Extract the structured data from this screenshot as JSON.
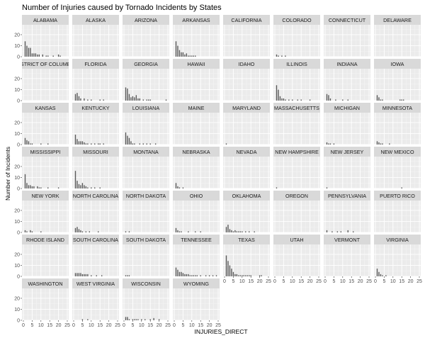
{
  "chart_data": {
    "type": "bar",
    "title": "Number of Injuries caused by Tornado Incidents by States",
    "xlabel": "INJURIES_DIRECT",
    "ylabel": "Number of Incidents",
    "xlim": [
      0,
      25
    ],
    "ylim": [
      0,
      29
    ],
    "x_ticks": [
      0,
      5,
      10,
      15,
      20,
      25
    ],
    "y_ticks": [
      0,
      10,
      20
    ],
    "grid": true,
    "facet_columns": 8,
    "facets": [
      {
        "name": "ALABAMA",
        "x": [
          1,
          2,
          3,
          4,
          5,
          6,
          7,
          8,
          9,
          11,
          13,
          14,
          17,
          20,
          21
        ],
        "values": [
          14,
          10,
          8,
          8,
          3,
          3,
          3,
          2,
          2,
          2,
          1,
          1,
          1,
          2,
          1
        ]
      },
      {
        "name": "ALASKA",
        "x": [],
        "values": []
      },
      {
        "name": "ARIZONA",
        "x": [],
        "values": []
      },
      {
        "name": "ARKANSAS",
        "x": [
          1,
          2,
          3,
          4,
          5,
          6,
          7,
          8,
          9,
          10,
          11,
          12
        ],
        "values": [
          14,
          10,
          6,
          4,
          4,
          2,
          3,
          1,
          1,
          1,
          1,
          1
        ]
      },
      {
        "name": "CALIFORNIA",
        "x": [],
        "values": []
      },
      {
        "name": "COLORADO",
        "x": [
          1,
          2,
          4,
          6
        ],
        "values": [
          2,
          1,
          1,
          1
        ]
      },
      {
        "name": "CONNECTICUT",
        "x": [],
        "values": []
      },
      {
        "name": "DELAWARE",
        "x": [],
        "values": []
      },
      {
        "name": "DISTRICT OF COLUMBIA",
        "x": [],
        "values": []
      },
      {
        "name": "FLORIDA",
        "x": [
          1,
          2,
          3,
          4,
          6,
          8,
          10,
          15,
          17
        ],
        "values": [
          6,
          7,
          4,
          2,
          2,
          1,
          1,
          1,
          1
        ]
      },
      {
        "name": "GEORGIA",
        "x": [
          1,
          2,
          3,
          4,
          5,
          6,
          7,
          8,
          9,
          11,
          13,
          14,
          15,
          24
        ],
        "values": [
          12,
          11,
          6,
          3,
          4,
          3,
          5,
          2,
          2,
          1,
          1,
          1,
          1,
          1
        ]
      },
      {
        "name": "HAWAII",
        "x": [],
        "values": []
      },
      {
        "name": "IDAHO",
        "x": [],
        "values": []
      },
      {
        "name": "ILLINOIS",
        "x": [
          1,
          2,
          3,
          4,
          5,
          6,
          8,
          10,
          13,
          15,
          20
        ],
        "values": [
          14,
          10,
          4,
          2,
          2,
          1,
          1,
          1,
          1,
          1,
          1
        ]
      },
      {
        "name": "INDIANA",
        "x": [
          1,
          2,
          3,
          6,
          10,
          13
        ],
        "values": [
          6,
          5,
          2,
          1,
          1,
          1
        ]
      },
      {
        "name": "IOWA",
        "x": [
          1,
          2,
          3,
          4,
          14,
          15,
          16
        ],
        "values": [
          5,
          3,
          1,
          1,
          1,
          1,
          1
        ]
      },
      {
        "name": "KANSAS",
        "x": [
          1,
          2,
          3,
          4,
          5,
          10,
          14
        ],
        "values": [
          6,
          4,
          3,
          1,
          1,
          1,
          1
        ]
      },
      {
        "name": "KENTUCKY",
        "x": [
          1,
          2,
          3,
          4,
          5,
          6,
          7,
          8,
          10,
          12,
          14,
          15,
          17
        ],
        "values": [
          9,
          5,
          3,
          3,
          3,
          2,
          1,
          1,
          1,
          1,
          1,
          1,
          1
        ]
      },
      {
        "name": "LOUISIANA",
        "x": [
          1,
          2,
          3,
          4,
          5,
          6,
          9,
          11,
          13,
          15,
          18
        ],
        "values": [
          11,
          8,
          6,
          3,
          1,
          1,
          1,
          1,
          1,
          1,
          1
        ]
      },
      {
        "name": "MAINE",
        "x": [],
        "values": []
      },
      {
        "name": "MARYLAND",
        "x": [
          1
        ],
        "values": [
          1
        ]
      },
      {
        "name": "MASSACHUSETTS",
        "x": [],
        "values": []
      },
      {
        "name": "MICHIGAN",
        "x": [
          1,
          2,
          3,
          5
        ],
        "values": [
          2,
          1,
          1,
          1
        ]
      },
      {
        "name": "MINNESOTA",
        "x": [
          1,
          2,
          3,
          4,
          8
        ],
        "values": [
          3,
          2,
          1,
          1,
          1
        ]
      },
      {
        "name": "MISSISSIPPI",
        "x": [
          1,
          2,
          3,
          4,
          5,
          6,
          8,
          9,
          10,
          14,
          20
        ],
        "values": [
          13,
          5,
          3,
          3,
          2,
          2,
          2,
          1,
          1,
          1,
          1
        ]
      },
      {
        "name": "MISSOURI",
        "x": [
          1,
          2,
          3,
          4,
          5,
          6,
          7,
          8,
          10,
          12,
          15
        ],
        "values": [
          16,
          7,
          4,
          3,
          5,
          3,
          2,
          1,
          1,
          1,
          1
        ]
      },
      {
        "name": "MONTANA",
        "x": [],
        "values": []
      },
      {
        "name": "NEBRASKA",
        "x": [
          1,
          2,
          3,
          5
        ],
        "values": [
          5,
          2,
          1,
          1
        ]
      },
      {
        "name": "NEVADA",
        "x": [],
        "values": []
      },
      {
        "name": "NEW HAMPSHIRE",
        "x": [
          1
        ],
        "values": [
          1
        ]
      },
      {
        "name": "NEW JERSEY",
        "x": [
          1
        ],
        "values": [
          1
        ]
      },
      {
        "name": "NEW MEXICO",
        "x": [
          15
        ],
        "values": [
          1
        ]
      },
      {
        "name": "NEW YORK",
        "x": [
          1,
          2,
          4,
          5,
          10
        ],
        "values": [
          2,
          1,
          2,
          1,
          1
        ]
      },
      {
        "name": "NORTH CAROLINA",
        "x": [
          1,
          2,
          3,
          4,
          5,
          7,
          9,
          14
        ],
        "values": [
          4,
          5,
          3,
          2,
          1,
          1,
          1,
          1
        ]
      },
      {
        "name": "NORTH DAKOTA",
        "x": [
          1,
          3
        ],
        "values": [
          1,
          1
        ]
      },
      {
        "name": "OHIO",
        "x": [
          1,
          2,
          3,
          4,
          8,
          12,
          15
        ],
        "values": [
          4,
          2,
          1,
          1,
          1,
          1,
          1
        ]
      },
      {
        "name": "OKLAHOMA",
        "x": [
          1,
          2,
          3,
          4,
          5,
          6,
          7,
          8,
          9,
          10,
          12,
          14,
          17
        ],
        "values": [
          5,
          7,
          3,
          2,
          1,
          2,
          1,
          1,
          1,
          1,
          1,
          1,
          1
        ]
      },
      {
        "name": "OREGON",
        "x": [],
        "values": []
      },
      {
        "name": "PENNSYLVANIA",
        "x": [
          1,
          4,
          7,
          9,
          13,
          16
        ],
        "values": [
          2,
          1,
          1,
          1,
          2,
          1
        ]
      },
      {
        "name": "PUERTO RICO",
        "x": [],
        "values": []
      },
      {
        "name": "RHODE ISLAND",
        "x": [],
        "values": []
      },
      {
        "name": "SOUTH CAROLINA",
        "x": [
          1,
          2,
          3,
          4,
          5,
          6,
          7,
          8,
          10,
          13,
          16
        ],
        "values": [
          3,
          3,
          3,
          3,
          2,
          2,
          2,
          2,
          1,
          1,
          1
        ]
      },
      {
        "name": "SOUTH DAKOTA",
        "x": [
          1,
          2,
          3
        ],
        "values": [
          1,
          1,
          1
        ]
      },
      {
        "name": "TENNESSEE",
        "x": [
          1,
          2,
          3,
          4,
          5,
          6,
          7,
          8,
          9,
          10,
          11,
          12,
          13,
          15,
          18,
          20,
          22,
          24
        ],
        "values": [
          8,
          6,
          4,
          4,
          3,
          2,
          2,
          2,
          1,
          1,
          1,
          1,
          1,
          1,
          1,
          1,
          1,
          1
        ]
      },
      {
        "name": "TEXAS",
        "x": [
          1,
          2,
          3,
          4,
          5,
          6,
          7,
          8,
          9,
          10,
          11,
          12,
          13,
          14,
          15,
          20,
          21
        ],
        "values": [
          19,
          14,
          10,
          7,
          4,
          2,
          2,
          1,
          1,
          1,
          1,
          1,
          1,
          1,
          1,
          1,
          1
        ]
      },
      {
        "name": "UTAH",
        "x": [],
        "values": []
      },
      {
        "name": "VERMONT",
        "x": [],
        "values": []
      },
      {
        "name": "VIRGINIA",
        "x": [
          1,
          2,
          3,
          4,
          6
        ],
        "values": [
          7,
          4,
          2,
          1,
          1
        ]
      },
      {
        "name": "WASHINGTON",
        "x": [],
        "values": []
      },
      {
        "name": "WEST VIRGINIA",
        "x": [
          5,
          8
        ],
        "values": [
          1,
          1
        ]
      },
      {
        "name": "WISCONSIN",
        "x": [
          1,
          2,
          3,
          5,
          6,
          7,
          8,
          10,
          12,
          15,
          17,
          20
        ],
        "values": [
          3,
          3,
          1,
          1,
          1,
          1,
          1,
          1,
          1,
          1,
          2,
          1
        ]
      },
      {
        "name": "WYOMING",
        "x": [],
        "values": []
      }
    ]
  }
}
